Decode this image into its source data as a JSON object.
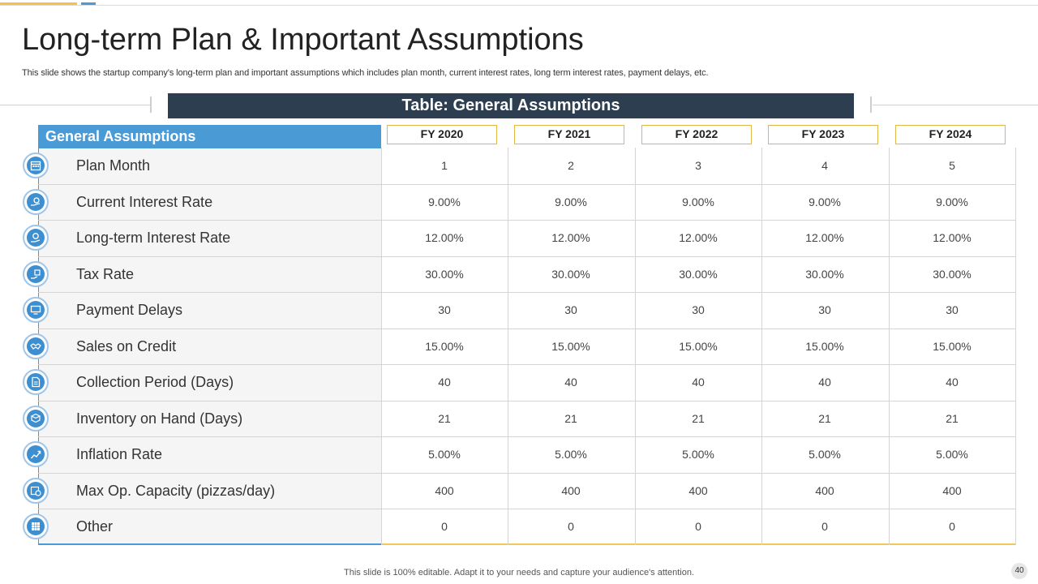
{
  "header": {
    "title": "Long-term Plan & Important Assumptions",
    "subtitle": "This slide shows the startup company's long-term plan and important assumptions which includes plan month, current interest rates, long term interest rates, payment delays, etc."
  },
  "banner": {
    "label": "Table: General Assumptions"
  },
  "table": {
    "row_header": "General Assumptions",
    "years": [
      "FY 2020",
      "FY 2021",
      "FY 2022",
      "FY 2023",
      "FY 2024"
    ],
    "rows": [
      {
        "label": "Plan Month",
        "icon": "calendar-icon",
        "values": [
          "1",
          "2",
          "3",
          "4",
          "5"
        ]
      },
      {
        "label": "Current Interest Rate",
        "icon": "money-hand-icon",
        "values": [
          "9.00%",
          "9.00%",
          "9.00%",
          "9.00%",
          "9.00%"
        ]
      },
      {
        "label": "Long-term Interest Rate",
        "icon": "coin-hand-icon",
        "values": [
          "12.00%",
          "12.00%",
          "12.00%",
          "12.00%",
          "12.00%"
        ]
      },
      {
        "label": "Tax Rate",
        "icon": "tax-hand-icon",
        "values": [
          "30.00%",
          "30.00%",
          "30.00%",
          "30.00%",
          "30.00%"
        ]
      },
      {
        "label": "Payment Delays",
        "icon": "monitor-icon",
        "values": [
          "30",
          "30",
          "30",
          "30",
          "30"
        ]
      },
      {
        "label": "Sales on Credit",
        "icon": "handshake-icon",
        "values": [
          "15.00%",
          "15.00%",
          "15.00%",
          "15.00%",
          "15.00%"
        ]
      },
      {
        "label": "Collection Period (Days)",
        "icon": "document-icon",
        "values": [
          "40",
          "40",
          "40",
          "40",
          "40"
        ]
      },
      {
        "label": "Inventory on Hand (Days)",
        "icon": "box-hand-icon",
        "values": [
          "21",
          "21",
          "21",
          "21",
          "21"
        ]
      },
      {
        "label": "Inflation Rate",
        "icon": "growth-chart-icon",
        "values": [
          "5.00%",
          "5.00%",
          "5.00%",
          "5.00%",
          "5.00%"
        ]
      },
      {
        "label": "Max Op. Capacity (pizzas/day)",
        "icon": "calendar-clock-icon",
        "values": [
          "400",
          "400",
          "400",
          "400",
          "400"
        ]
      },
      {
        "label": "Other",
        "icon": "grid-icon",
        "values": [
          "0",
          "0",
          "0",
          "0",
          "0"
        ]
      }
    ]
  },
  "footer": {
    "note": "This slide is 100% editable. Adapt it to your needs and capture your audience's attention.",
    "page_number": "40"
  },
  "colors": {
    "accent_blue": "#4a9ad6",
    "banner_navy": "#2c3e50",
    "accent_gold": "#e0b84a"
  }
}
